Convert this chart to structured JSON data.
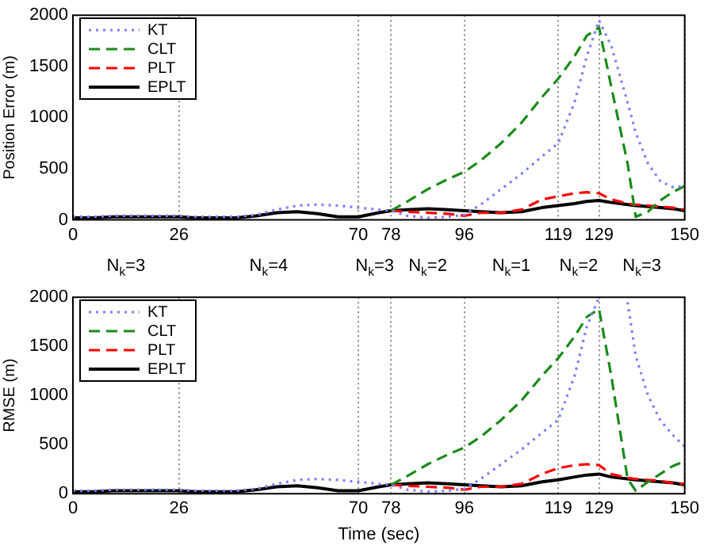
{
  "chart_data": [
    {
      "type": "line",
      "ylabel": "Position Error (m)",
      "x": [
        0,
        5,
        10,
        15,
        20,
        26,
        30,
        35,
        40,
        45,
        50,
        55,
        60,
        65,
        70,
        75,
        78,
        82,
        87,
        92,
        96,
        100,
        105,
        110,
        115,
        119,
        123,
        126,
        129,
        132,
        136,
        138,
        141,
        144,
        147,
        150
      ],
      "series": [
        {
          "name": "KT",
          "color": "#7f7fff",
          "line_style": "dotted",
          "values": [
            30,
            30,
            40,
            40,
            40,
            40,
            30,
            30,
            30,
            50,
            100,
            140,
            150,
            140,
            120,
            100,
            90,
            40,
            20,
            30,
            50,
            150,
            300,
            450,
            620,
            750,
            1150,
            1600,
            1950,
            1700,
            1150,
            850,
            550,
            380,
            320,
            330
          ]
        },
        {
          "name": "CLT",
          "color": "#1a8a1a",
          "line_style": "dashed",
          "values": [
            null,
            null,
            null,
            null,
            null,
            null,
            null,
            null,
            null,
            null,
            null,
            null,
            null,
            null,
            null,
            null,
            90,
            180,
            300,
            400,
            470,
            580,
            750,
            950,
            1200,
            1380,
            1600,
            1800,
            1880,
            1300,
            550,
            30,
            80,
            190,
            270,
            330
          ]
        },
        {
          "name": "PLT",
          "color": "#ff0000",
          "line_style": "dashed",
          "values": [
            null,
            null,
            null,
            null,
            null,
            null,
            null,
            null,
            null,
            null,
            null,
            null,
            null,
            null,
            null,
            null,
            90,
            80,
            70,
            60,
            40,
            70,
            70,
            100,
            200,
            230,
            260,
            270,
            260,
            200,
            160,
            150,
            140,
            130,
            120,
            100
          ]
        },
        {
          "name": "EPLT",
          "color": "#000000",
          "line_style": "solid",
          "values": [
            20,
            20,
            30,
            30,
            30,
            30,
            20,
            20,
            20,
            40,
            70,
            80,
            60,
            30,
            30,
            70,
            90,
            100,
            110,
            100,
            90,
            80,
            70,
            80,
            120,
            140,
            160,
            180,
            190,
            170,
            150,
            140,
            130,
            120,
            110,
            90
          ]
        }
      ],
      "xlim": [
        0,
        150
      ],
      "xticks": [
        0,
        26,
        70,
        78,
        96,
        119,
        129,
        150
      ],
      "ylim": [
        0,
        2000
      ],
      "yticks": [
        0,
        500,
        1000,
        1500,
        2000
      ],
      "grid": "x",
      "legend": "top left",
      "annotations": [
        "N$_{k}$=3",
        "N$_{k}$=4",
        "N$_{k}$=3",
        "N$_{k}$=2",
        "N$_{k}$=1",
        "N$_{k}$=2",
        "N$_{k}$=3"
      ]
    },
    {
      "type": "line",
      "ylabel": "RMSE (m)",
      "xlabel": "Time (sec)",
      "x": [
        0,
        5,
        10,
        15,
        20,
        26,
        30,
        35,
        40,
        45,
        50,
        55,
        60,
        65,
        70,
        75,
        78,
        82,
        87,
        92,
        96,
        100,
        105,
        110,
        115,
        119,
        123,
        126,
        129,
        132,
        136,
        138,
        141,
        144,
        147,
        150
      ],
      "series": [
        {
          "name": "KT",
          "color": "#7f7fff",
          "line_style": "dotted",
          "values": [
            30,
            30,
            40,
            40,
            40,
            40,
            30,
            30,
            30,
            50,
            100,
            140,
            150,
            140,
            120,
            100,
            90,
            40,
            20,
            30,
            50,
            150,
            300,
            450,
            620,
            750,
            1200,
            1700,
            2000,
            null,
            1950,
            1400,
            1000,
            750,
            600,
            480
          ]
        },
        {
          "name": "CLT",
          "color": "#1a8a1a",
          "line_style": "dashed",
          "values": [
            null,
            null,
            null,
            null,
            null,
            null,
            null,
            null,
            null,
            null,
            null,
            null,
            null,
            null,
            null,
            null,
            90,
            180,
            300,
            400,
            470,
            580,
            750,
            950,
            1200,
            1380,
            1600,
            1800,
            1880,
            1200,
            150,
            30,
            120,
            200,
            280,
            330
          ]
        },
        {
          "name": "PLT",
          "color": "#ff0000",
          "line_style": "dashed",
          "values": [
            null,
            null,
            null,
            null,
            null,
            null,
            null,
            null,
            null,
            null,
            null,
            null,
            null,
            null,
            null,
            null,
            90,
            80,
            70,
            60,
            40,
            70,
            70,
            100,
            200,
            260,
            290,
            300,
            290,
            200,
            160,
            150,
            140,
            130,
            110,
            100
          ]
        },
        {
          "name": "EPLT",
          "color": "#000000",
          "line_style": "solid",
          "values": [
            20,
            20,
            30,
            30,
            30,
            30,
            20,
            20,
            20,
            40,
            70,
            80,
            60,
            30,
            30,
            70,
            90,
            100,
            110,
            100,
            90,
            80,
            70,
            80,
            120,
            140,
            170,
            190,
            200,
            170,
            150,
            140,
            130,
            120,
            110,
            90
          ]
        }
      ],
      "xlim": [
        0,
        150
      ],
      "xticks": [
        0,
        26,
        70,
        78,
        96,
        119,
        129,
        150
      ],
      "ylim": [
        0,
        2000
      ],
      "yticks": [
        0,
        500,
        1000,
        1500,
        2000
      ],
      "grid": "x",
      "legend": "top left"
    }
  ]
}
